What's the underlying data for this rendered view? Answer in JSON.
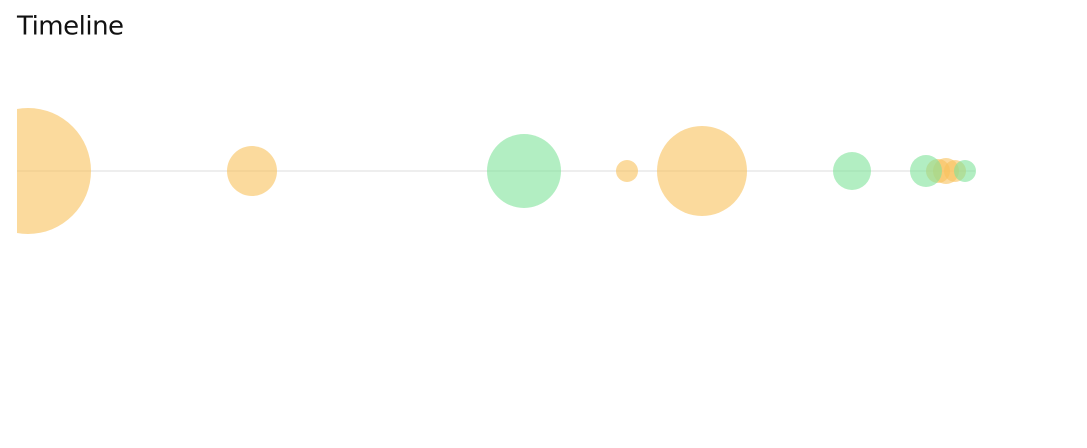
{
  "chart_data": {
    "type": "bubble",
    "title": "Timeline",
    "xlim": [
      0,
      1053
    ],
    "series": [
      {
        "color": "#f8c15c",
        "x": [
          11,
          235,
          610,
          685,
          921,
          929,
          938
        ],
        "sizes": [
          63,
          25,
          11,
          45,
          12,
          13,
          11
        ]
      },
      {
        "color": "#7ee29a",
        "x": [
          507,
          835,
          909,
          948
        ],
        "sizes": [
          37,
          19,
          16,
          11
        ]
      }
    ]
  }
}
